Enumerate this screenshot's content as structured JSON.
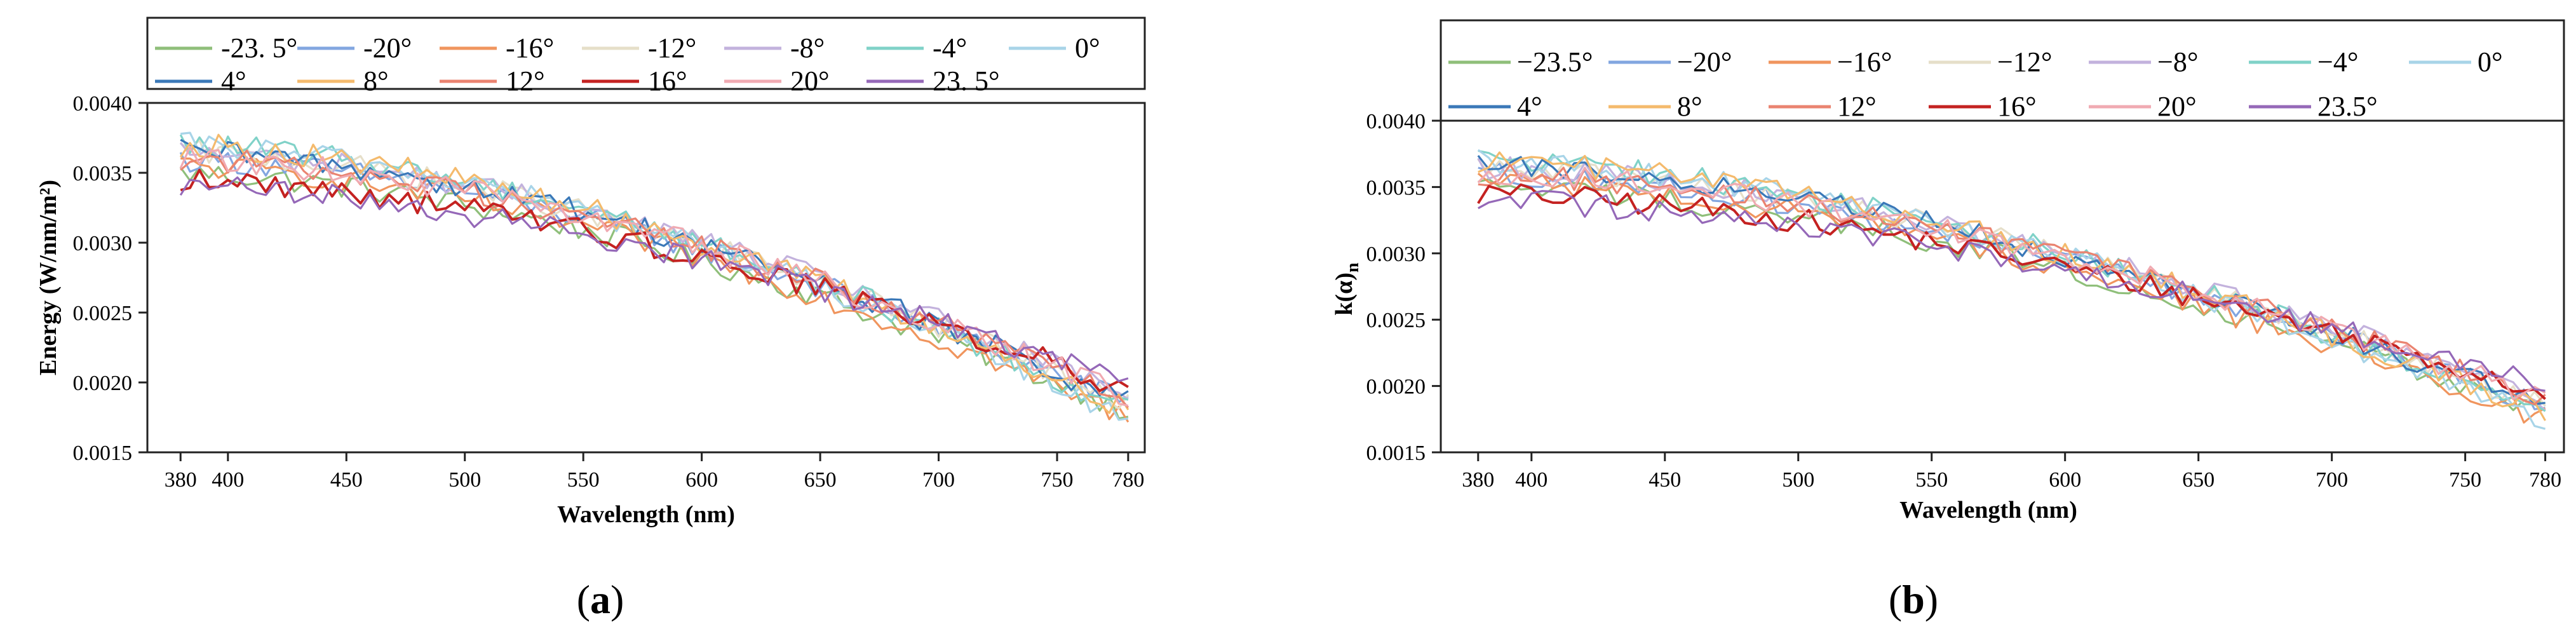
{
  "figure": {
    "panel_a_label_open": "(",
    "panel_a_label_letter": "a",
    "panel_a_label_close": ")",
    "panel_b_label_open": "(",
    "panel_b_label_letter": "b",
    "panel_b_label_close": ")"
  },
  "chart_data": [
    {
      "panel": "a",
      "type": "line",
      "title": "",
      "xlabel": "Wavelength (nm)",
      "ylabel": "Energy (W/nm/m²)",
      "xlim": [
        366,
        787
      ],
      "ylim": [
        0.0015,
        0.004
      ],
      "xticks": [
        380,
        400,
        450,
        500,
        550,
        600,
        650,
        700,
        750,
        780
      ],
      "xtick_labels": [
        "380",
        "400",
        "450",
        "500",
        "550",
        "600",
        "650",
        "700",
        "750",
        "780"
      ],
      "yticks": [
        0.0015,
        0.002,
        0.0025,
        0.003,
        0.0035,
        0.004
      ],
      "ytick_labels": [
        "0.0015",
        "0.0020",
        "0.0025",
        "0.0030",
        "0.0035",
        "0.0040"
      ],
      "legend_position": "top",
      "legend_columns": 7,
      "legend_labels": [
        "-23. 5°",
        "-20°",
        "-16°",
        "-12°",
        "-8°",
        "-4°",
        "0°",
        "4°",
        "8°",
        "12°",
        "16°",
        "20°",
        "23. 5°"
      ]
    },
    {
      "panel": "b",
      "type": "line",
      "title": "",
      "xlabel": "Wavelength (nm)",
      "ylabel_main": "k(α)",
      "ylabel_sub": "n",
      "xlim": [
        366,
        787
      ],
      "ylim": [
        0.0015,
        0.004
      ],
      "xticks": [
        380,
        400,
        450,
        500,
        550,
        600,
        650,
        700,
        750,
        780
      ],
      "xtick_labels": [
        "380",
        "400",
        "450",
        "500",
        "550",
        "600",
        "650",
        "700",
        "750",
        "780"
      ],
      "yticks": [
        0.0015,
        0.002,
        0.0025,
        0.003,
        0.0035,
        0.004
      ],
      "ytick_labels": [
        "0.0015",
        "0.0020",
        "0.0025",
        "0.0030",
        "0.0035",
        "0.0040"
      ],
      "legend_position": "top",
      "legend_columns": 7,
      "legend_labels": [
        "−23.5°",
        "−20°",
        "−16°",
        "−12°",
        "−8°",
        "−4°",
        "0°",
        "4°",
        "8°",
        "12°",
        "16°",
        "20°",
        "23.5°"
      ]
    }
  ],
  "series_info": [
    {
      "name": "-23.5",
      "color": "#8fbf7a",
      "start": 0.0035,
      "end": 0.0018
    },
    {
      "name": "-20",
      "color": "#82a6e0",
      "start": 0.0036,
      "end": 0.00185
    },
    {
      "name": "-16",
      "color": "#f0955e",
      "start": 0.00355,
      "end": 0.00175
    },
    {
      "name": "-12",
      "color": "#e6dfc9",
      "start": 0.00365,
      "end": 0.00185
    },
    {
      "name": "-8",
      "color": "#c3b2dd",
      "start": 0.00365,
      "end": 0.0019
    },
    {
      "name": "-4",
      "color": "#80d2c8",
      "start": 0.0037,
      "end": 0.0018
    },
    {
      "name": "0",
      "color": "#a8d4e8",
      "start": 0.0037,
      "end": 0.00175
    },
    {
      "name": "4",
      "color": "#3a78b8",
      "start": 0.00365,
      "end": 0.00185
    },
    {
      "name": "8",
      "color": "#f4ba6c",
      "start": 0.0037,
      "end": 0.0018
    },
    {
      "name": "12",
      "color": "#ea8370",
      "start": 0.0036,
      "end": 0.0019
    },
    {
      "name": "16",
      "color": "#c42221",
      "start": 0.00345,
      "end": 0.00195
    },
    {
      "name": "20",
      "color": "#f0aab2",
      "start": 0.0036,
      "end": 0.0019
    },
    {
      "name": "23.5",
      "color": "#9568b8",
      "start": 0.0034,
      "end": 0.002
    }
  ]
}
